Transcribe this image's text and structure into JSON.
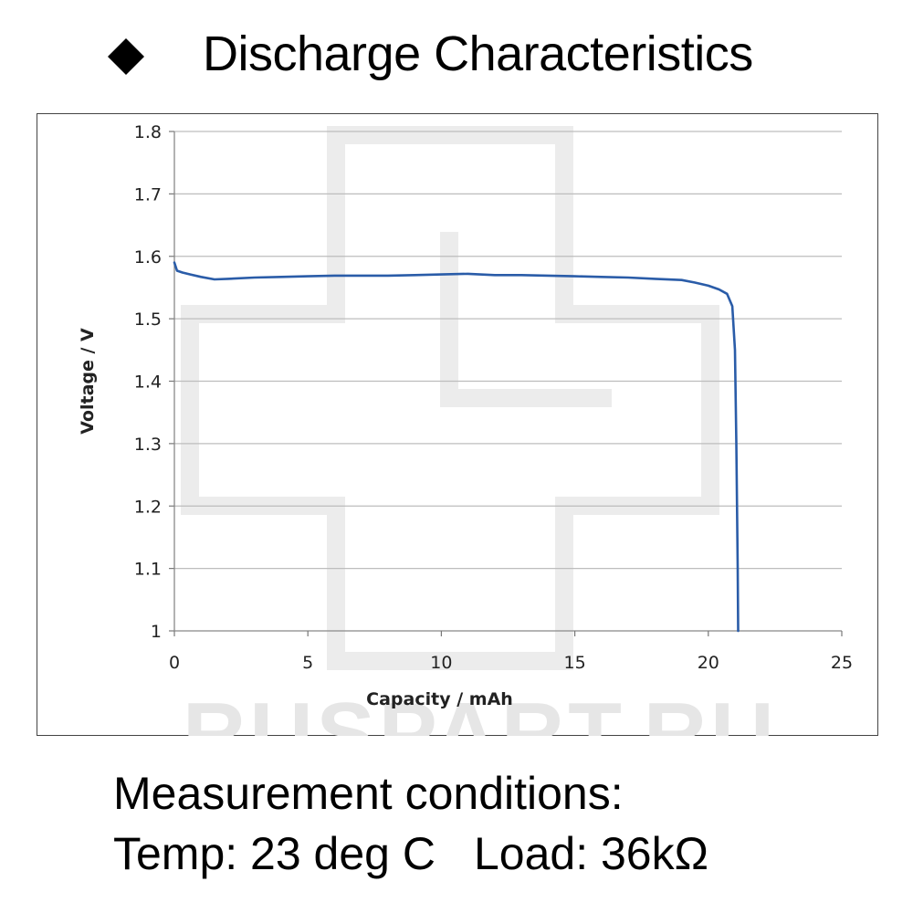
{
  "heading": {
    "marker_icon": "black-diamond",
    "title": "Discharge Characteristics"
  },
  "chart_data": {
    "type": "line",
    "title": "",
    "xlabel": "Capacity  /  mAh",
    "ylabel": "Voltage  /  V",
    "xlim": [
      0,
      25
    ],
    "ylim": [
      1,
      1.8
    ],
    "x_ticks": [
      "0",
      "5",
      "10",
      "15",
      "20",
      "25"
    ],
    "y_ticks": [
      "1",
      "1.1",
      "1.2",
      "1.3",
      "1.4",
      "1.5",
      "1.6",
      "1.7",
      "1.8"
    ],
    "grid": "horizontal",
    "legend": "none",
    "line_color": "#2a5ca8",
    "series": [
      {
        "x": [
          0,
          0.1,
          0.3,
          0.6,
          1.0,
          1.5,
          2,
          3,
          4,
          5,
          6,
          7,
          8,
          9,
          10,
          11,
          12,
          13,
          14,
          15,
          16,
          17,
          18,
          19,
          19.5,
          20,
          20.4,
          20.7,
          20.9,
          21.0,
          21.05,
          21.1,
          21.12
        ],
        "y": [
          1.59,
          1.577,
          1.574,
          1.571,
          1.567,
          1.563,
          1.564,
          1.566,
          1.567,
          1.568,
          1.569,
          1.569,
          1.569,
          1.57,
          1.571,
          1.572,
          1.57,
          1.57,
          1.569,
          1.568,
          1.567,
          1.566,
          1.564,
          1.562,
          1.558,
          1.553,
          1.547,
          1.54,
          1.52,
          1.45,
          1.3,
          1.1,
          1.0
        ]
      }
    ]
  },
  "watermark": {
    "text": "RUSPART.RU"
  },
  "conditions": {
    "line1": "Measurement conditions:",
    "temp": "Temp: 23 deg C",
    "load": "Load: 36kΩ"
  }
}
